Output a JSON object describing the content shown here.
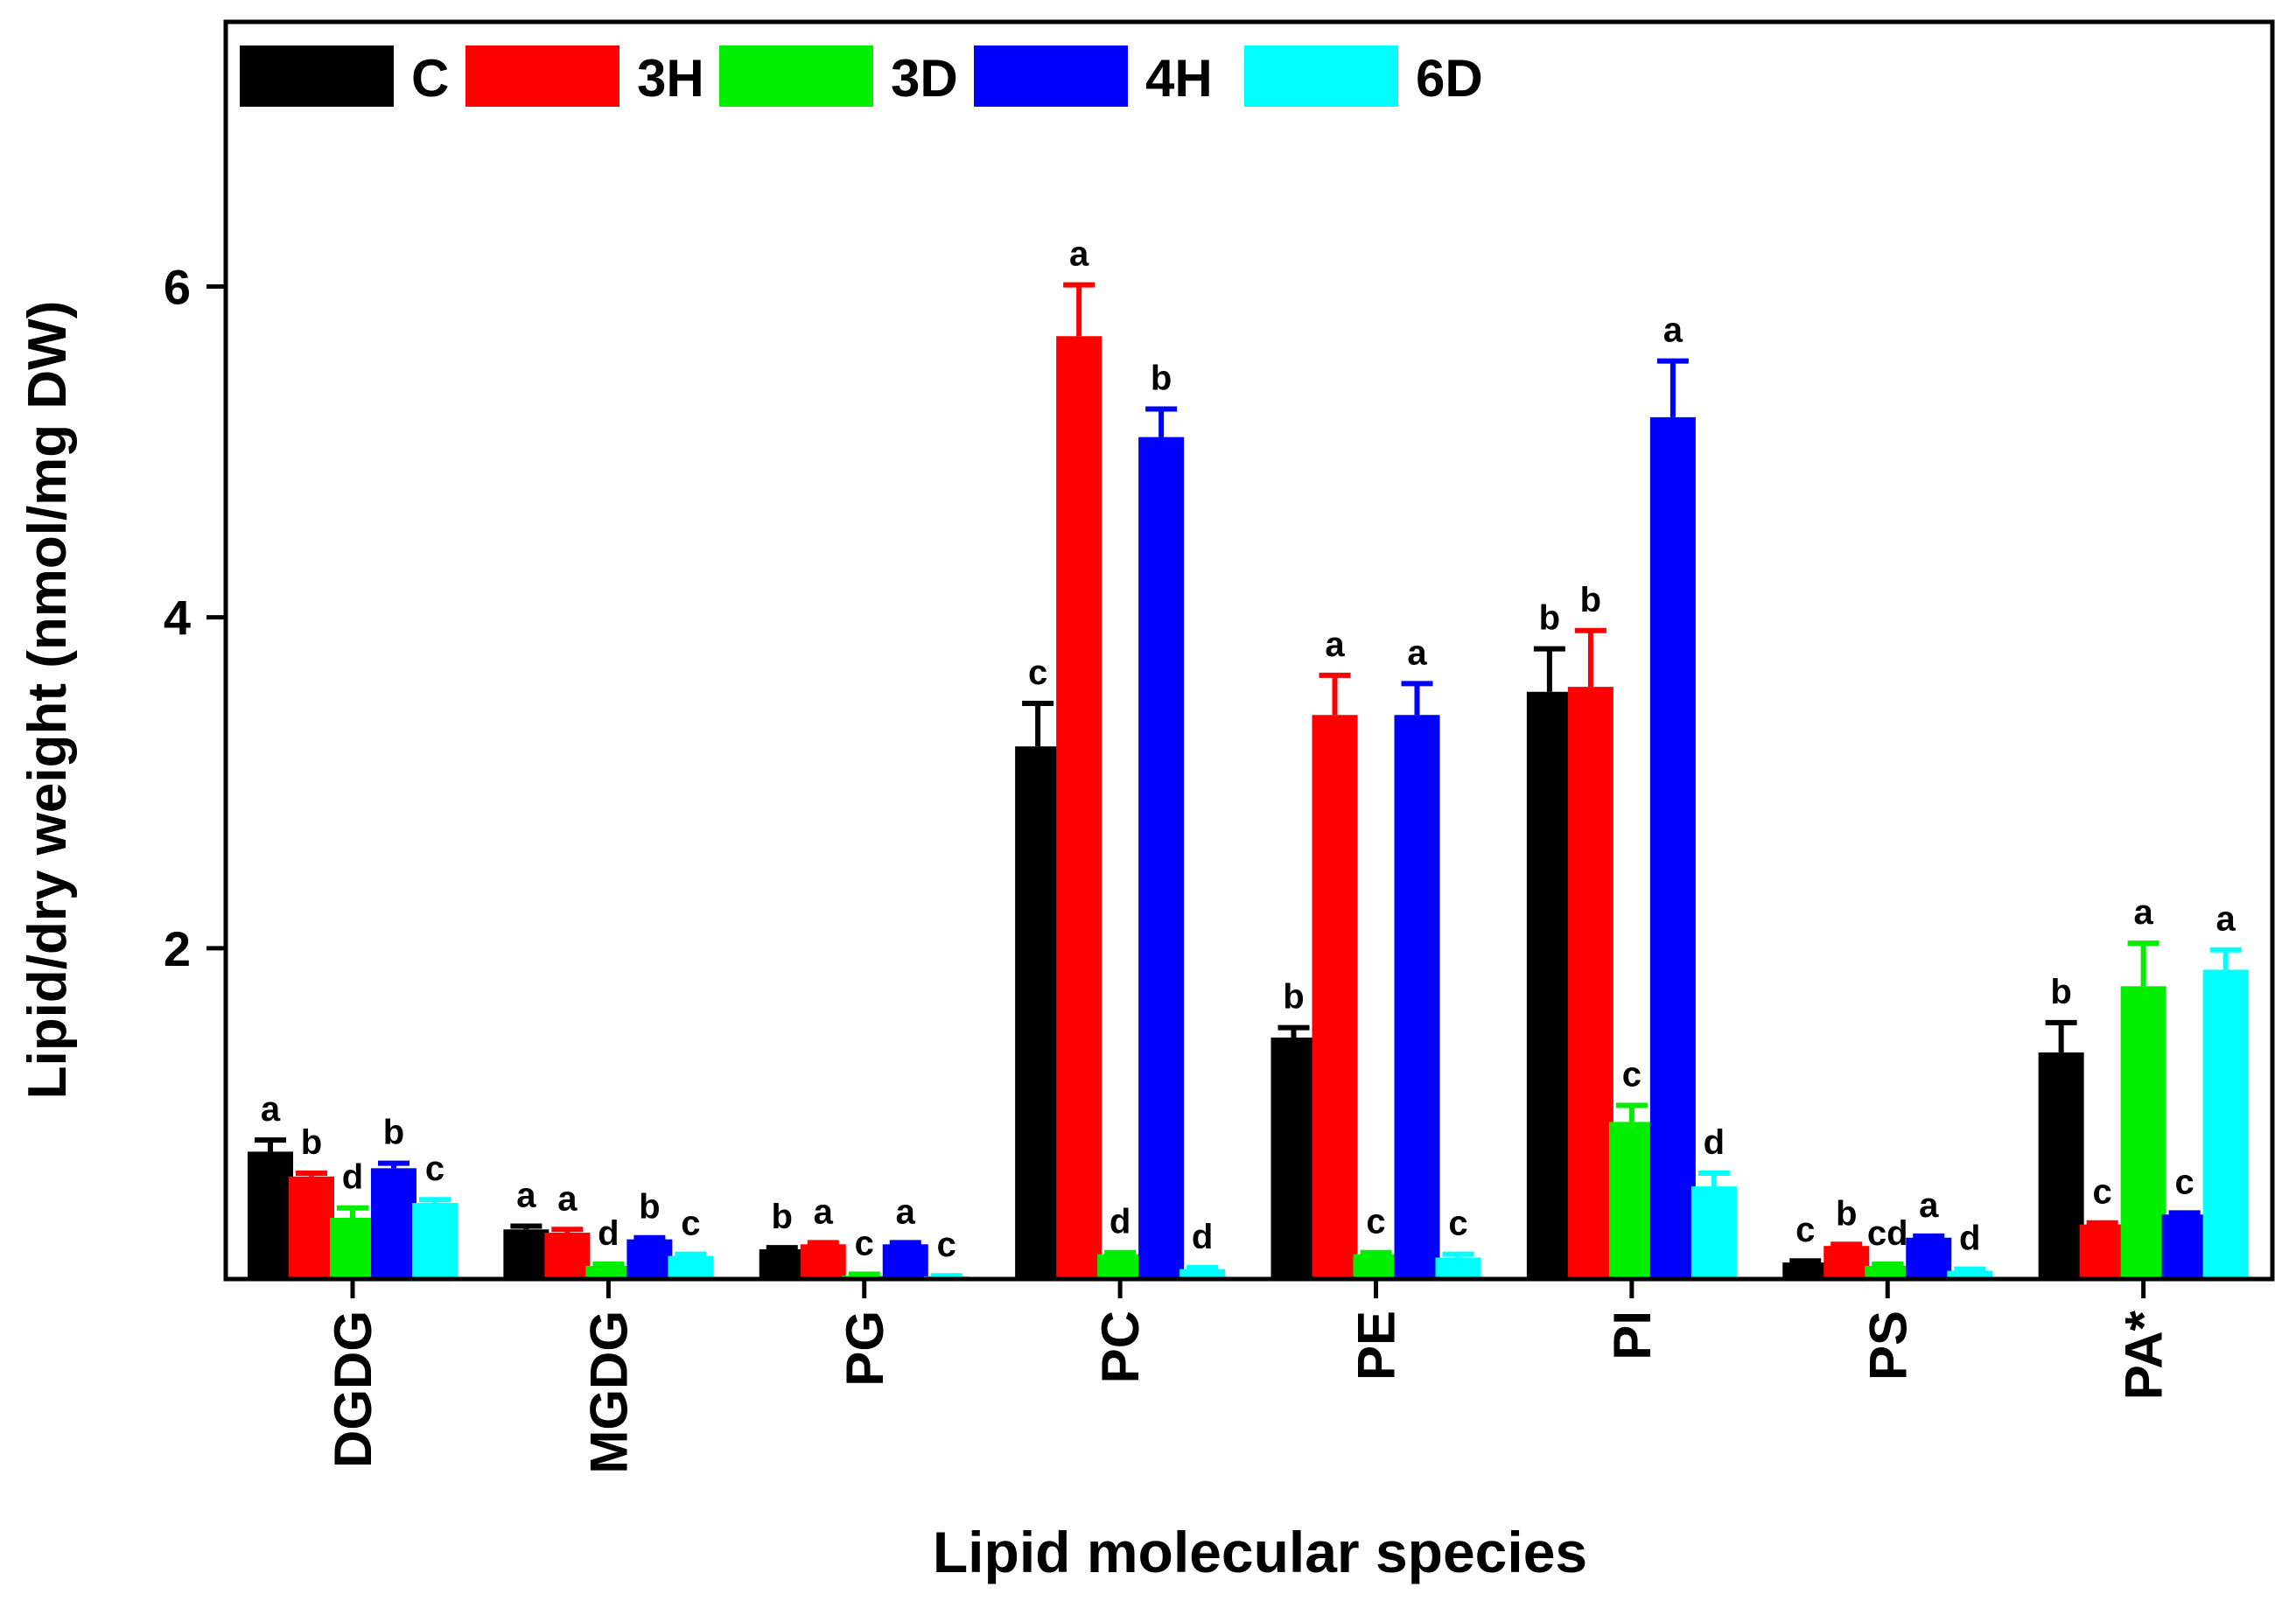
{
  "chart_data": {
    "type": "bar",
    "title": "",
    "xlabel": "Lipid molecular species",
    "ylabel": "Lipid/dry weight (nmol/mg DW)",
    "ylim": [
      0,
      7.6
    ],
    "yticks": [
      2,
      4,
      6
    ],
    "yticks_labels": [
      "2",
      "4",
      "6"
    ],
    "grid": false,
    "legend_position": "top",
    "categories": [
      "DGDG",
      "MGDG",
      "PG",
      "PC",
      "PE",
      "PI",
      "PS",
      "PA*"
    ],
    "series": [
      {
        "name": "C",
        "color": "#000000",
        "values": [
          0.77,
          0.3,
          0.18,
          3.22,
          1.46,
          3.55,
          0.1,
          1.37
        ],
        "errors": [
          0.07,
          0.02,
          0.01,
          0.26,
          0.06,
          0.26,
          0.01,
          0.18
        ],
        "letters": [
          "a",
          "a",
          "b",
          "c",
          "b",
          "b",
          "c",
          "b"
        ]
      },
      {
        "name": "3H",
        "color": "#ff0000",
        "values": [
          0.62,
          0.28,
          0.21,
          5.7,
          3.41,
          3.58,
          0.2,
          0.33
        ],
        "errors": [
          0.02,
          0.02,
          0.01,
          0.31,
          0.24,
          0.34,
          0.01,
          0.01
        ],
        "letters": [
          "b",
          "a",
          "a",
          "a",
          "a",
          "b",
          "b",
          "c"
        ]
      },
      {
        "name": "3D",
        "color": "#00ee00",
        "values": [
          0.37,
          0.08,
          0.02,
          0.15,
          0.15,
          0.95,
          0.08,
          1.77
        ],
        "errors": [
          0.06,
          0.01,
          0.01,
          0.01,
          0.01,
          0.1,
          0.01,
          0.26
        ],
        "letters": [
          "d",
          "d",
          "c",
          "d",
          "c",
          "c",
          "cd",
          "a"
        ]
      },
      {
        "name": "4H",
        "color": "#0000ff",
        "values": [
          0.67,
          0.24,
          0.21,
          5.09,
          3.41,
          5.21,
          0.25,
          0.39
        ],
        "errors": [
          0.03,
          0.01,
          0.01,
          0.17,
          0.19,
          0.34,
          0.01,
          0.01
        ],
        "letters": [
          "b",
          "b",
          "a",
          "b",
          "a",
          "a",
          "a",
          "c"
        ]
      },
      {
        "name": "6D",
        "color": "#00ffff",
        "values": [
          0.46,
          0.14,
          0.01,
          0.06,
          0.13,
          0.56,
          0.05,
          1.87
        ],
        "errors": [
          0.02,
          0.01,
          0.01,
          0.01,
          0.02,
          0.08,
          0.01,
          0.12
        ],
        "letters": [
          "c",
          "c",
          "c",
          "d",
          "c",
          "d",
          "d",
          "a"
        ]
      }
    ]
  }
}
